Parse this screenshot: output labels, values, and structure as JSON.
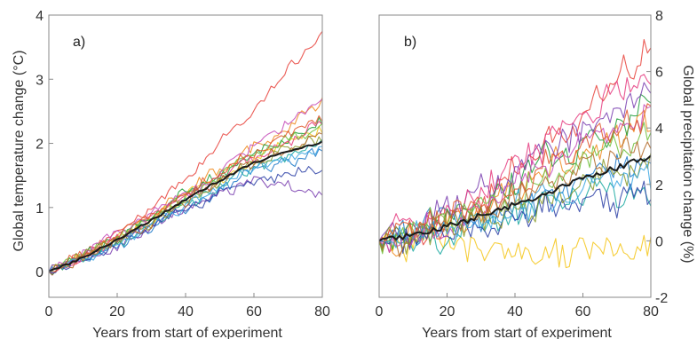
{
  "chart_data": [
    {
      "type": "line",
      "panel_label": "a)",
      "xlabel": "Years from start of experiment",
      "ylabel": "Global temperature change (°C)",
      "xlim": [
        0,
        80
      ],
      "ylim": [
        -0.4,
        4
      ],
      "xticks": [
        "0",
        "20",
        "40",
        "60",
        "80"
      ],
      "yticks": [
        "0",
        "1",
        "2",
        "3",
        "4"
      ],
      "y_axis_side": "left",
      "grid": false,
      "legend": "none",
      "colors": [
        "#e8413a",
        "#f08a1c",
        "#f5c518",
        "#1f9e3a",
        "#1b78c8",
        "#7a3fb0",
        "#e5397f",
        "#17a8a0",
        "#6fbf3b",
        "#2c3fa6",
        "#c44ab8",
        "#8a9a2a",
        "#e0562a",
        "#3aa6e0",
        "#b26a28"
      ],
      "mean_color": "#1a1a1a",
      "models": [
        {
          "x": [
            0,
            10,
            20,
            30,
            40,
            50,
            60,
            70,
            80
          ],
          "y": [
            0,
            0.3,
            0.62,
            0.95,
            1.45,
            2.02,
            2.55,
            3.12,
            3.72
          ]
        },
        {
          "x": [
            0,
            10,
            20,
            30,
            40,
            50,
            60,
            70,
            80
          ],
          "y": [
            0,
            0.25,
            0.55,
            0.85,
            1.25,
            1.6,
            1.95,
            2.25,
            2.6
          ]
        },
        {
          "x": [
            0,
            10,
            20,
            30,
            40,
            50,
            60,
            70,
            80
          ],
          "y": [
            0,
            0.22,
            0.5,
            0.8,
            1.15,
            1.45,
            1.75,
            2.0,
            2.2
          ]
        },
        {
          "x": [
            0,
            10,
            20,
            30,
            40,
            50,
            60,
            70,
            80
          ],
          "y": [
            0,
            0.24,
            0.52,
            0.82,
            1.2,
            1.52,
            1.85,
            2.1,
            2.35
          ]
        },
        {
          "x": [
            0,
            10,
            20,
            30,
            40,
            50,
            60,
            70,
            80
          ],
          "y": [
            0,
            0.2,
            0.45,
            0.72,
            1.02,
            1.3,
            1.55,
            1.72,
            1.85
          ]
        },
        {
          "x": [
            0,
            10,
            20,
            30,
            40,
            50,
            60,
            70,
            80
          ],
          "y": [
            0,
            0.18,
            0.42,
            0.7,
            0.98,
            1.22,
            1.42,
            1.38,
            1.2
          ]
        },
        {
          "x": [
            0,
            10,
            20,
            30,
            40,
            50,
            60,
            70,
            80
          ],
          "y": [
            0,
            0.23,
            0.5,
            0.8,
            1.12,
            1.45,
            1.78,
            2.02,
            2.28
          ]
        },
        {
          "x": [
            0,
            10,
            20,
            30,
            40,
            50,
            60,
            70,
            80
          ],
          "y": [
            0,
            0.2,
            0.46,
            0.75,
            1.05,
            1.35,
            1.62,
            1.8,
            1.98
          ]
        },
        {
          "x": [
            0,
            10,
            20,
            30,
            40,
            50,
            60,
            70,
            80
          ],
          "y": [
            0,
            0.24,
            0.52,
            0.82,
            1.15,
            1.5,
            1.82,
            2.05,
            2.25
          ]
        },
        {
          "x": [
            0,
            10,
            20,
            30,
            40,
            50,
            60,
            70,
            80
          ],
          "y": [
            0,
            0.18,
            0.42,
            0.68,
            0.95,
            1.2,
            1.38,
            1.5,
            1.55
          ]
        },
        {
          "x": [
            0,
            10,
            20,
            30,
            40,
            50,
            60,
            70,
            80
          ],
          "y": [
            0,
            0.26,
            0.56,
            0.88,
            1.22,
            1.58,
            1.95,
            2.3,
            2.7
          ]
        },
        {
          "x": [
            0,
            10,
            20,
            30,
            40,
            50,
            60,
            70,
            80
          ],
          "y": [
            0,
            0.22,
            0.48,
            0.76,
            1.08,
            1.38,
            1.65,
            1.88,
            2.05
          ]
        },
        {
          "x": [
            0,
            10,
            20,
            30,
            40,
            50,
            60,
            70,
            80
          ],
          "y": [
            0,
            0.25,
            0.54,
            0.86,
            1.18,
            1.52,
            1.86,
            2.12,
            2.4
          ]
        },
        {
          "x": [
            0,
            10,
            20,
            30,
            40,
            50,
            60,
            70,
            80
          ],
          "y": [
            0,
            0.2,
            0.46,
            0.74,
            1.05,
            1.32,
            1.58,
            1.8,
            1.95
          ]
        },
        {
          "x": [
            0,
            10,
            20,
            30,
            40,
            50,
            60,
            70,
            80
          ],
          "y": [
            0,
            0.22,
            0.5,
            0.78,
            1.1,
            1.42,
            1.7,
            1.92,
            2.12
          ]
        }
      ],
      "mean": {
        "x": [
          0,
          10,
          20,
          30,
          40,
          50,
          60,
          70,
          80
        ],
        "y": [
          0,
          0.22,
          0.5,
          0.8,
          1.12,
          1.42,
          1.7,
          1.88,
          2.02
        ]
      },
      "noise": 0.1
    },
    {
      "type": "line",
      "panel_label": "b)",
      "xlabel": "Years from start of experiment",
      "ylabel": "Global precipitation change (%)",
      "xlim": [
        0,
        80
      ],
      "ylim": [
        -2,
        8
      ],
      "xticks": [
        "0",
        "20",
        "40",
        "60",
        "80"
      ],
      "yticks": [
        "-2",
        "0",
        "2",
        "4",
        "6",
        "8"
      ],
      "y_axis_side": "right",
      "grid": false,
      "legend": "none",
      "colors": [
        "#e8413a",
        "#f08a1c",
        "#f5c518",
        "#1f9e3a",
        "#1b78c8",
        "#7a3fb0",
        "#e5397f",
        "#17a8a0",
        "#6fbf3b",
        "#2c3fa6",
        "#c44ab8",
        "#8a9a2a",
        "#e0562a",
        "#3aa6e0",
        "#b26a28"
      ],
      "mean_color": "#1a1a1a",
      "models": [
        {
          "x": [
            0,
            10,
            20,
            30,
            40,
            50,
            60,
            70,
            80
          ],
          "y": [
            0,
            0.3,
            0.8,
            1.5,
            2.4,
            3.4,
            4.6,
            5.8,
            7.0
          ]
        },
        {
          "x": [
            0,
            10,
            20,
            30,
            40,
            50,
            60,
            70,
            80
          ],
          "y": [
            0,
            0.3,
            0.7,
            1.2,
            1.8,
            2.5,
            3.2,
            3.7,
            4.1
          ]
        },
        {
          "x": [
            0,
            10,
            20,
            30,
            40,
            50,
            60,
            70,
            80
          ],
          "y": [
            0,
            0.1,
            0.1,
            -0.2,
            -0.6,
            -0.7,
            -0.4,
            -0.2,
            0.0
          ]
        },
        {
          "x": [
            0,
            10,
            20,
            30,
            40,
            50,
            60,
            70,
            80
          ],
          "y": [
            0,
            0.4,
            0.9,
            1.5,
            2.2,
            2.9,
            3.6,
            4.2,
            4.8
          ]
        },
        {
          "x": [
            0,
            10,
            20,
            30,
            40,
            50,
            60,
            70,
            80
          ],
          "y": [
            0,
            0.2,
            0.5,
            0.9,
            1.4,
            1.8,
            2.2,
            2.5,
            2.9
          ]
        },
        {
          "x": [
            0,
            10,
            20,
            30,
            40,
            50,
            60,
            70,
            80
          ],
          "y": [
            0,
            0.5,
            1.0,
            1.6,
            2.4,
            3.2,
            4.0,
            4.8,
            5.6
          ]
        },
        {
          "x": [
            0,
            10,
            20,
            30,
            40,
            50,
            60,
            70,
            80
          ],
          "y": [
            0,
            0.6,
            1.1,
            1.8,
            2.6,
            3.5,
            4.4,
            5.2,
            6.1
          ]
        },
        {
          "x": [
            0,
            10,
            20,
            30,
            40,
            50,
            60,
            70,
            80
          ],
          "y": [
            0,
            0.2,
            0.4,
            0.7,
            1.0,
            1.3,
            1.5,
            1.7,
            1.9
          ]
        },
        {
          "x": [
            0,
            10,
            20,
            30,
            40,
            50,
            60,
            70,
            80
          ],
          "y": [
            0,
            0.3,
            0.6,
            1.1,
            1.7,
            2.3,
            2.9,
            3.4,
            3.9
          ]
        },
        {
          "x": [
            0,
            10,
            20,
            30,
            40,
            50,
            60,
            70,
            80
          ],
          "y": [
            0,
            0.1,
            0.3,
            0.5,
            0.8,
            1.1,
            1.3,
            1.5,
            1.6
          ]
        },
        {
          "x": [
            0,
            10,
            20,
            30,
            40,
            50,
            60,
            70,
            80
          ],
          "y": [
            0,
            0.3,
            0.7,
            1.2,
            1.9,
            2.6,
            3.4,
            4.1,
            4.8
          ]
        },
        {
          "x": [
            0,
            10,
            20,
            30,
            40,
            50,
            60,
            70,
            80
          ],
          "y": [
            0,
            0.2,
            0.5,
            0.8,
            1.2,
            1.6,
            2.0,
            2.3,
            2.6
          ]
        },
        {
          "x": [
            0,
            10,
            20,
            30,
            40,
            50,
            60,
            70,
            80
          ],
          "y": [
            0,
            0.4,
            0.8,
            1.3,
            1.9,
            2.6,
            3.3,
            3.9,
            4.5
          ]
        },
        {
          "x": [
            0,
            10,
            20,
            30,
            40,
            50,
            60,
            70,
            80
          ],
          "y": [
            0,
            0.2,
            0.4,
            0.8,
            1.2,
            1.5,
            1.8,
            2.1,
            2.3
          ]
        },
        {
          "x": [
            0,
            10,
            20,
            30,
            40,
            50,
            60,
            70,
            80
          ],
          "y": [
            0,
            0.3,
            0.6,
            1.0,
            1.5,
            2.0,
            2.5,
            3.0,
            3.4
          ]
        }
      ],
      "mean": {
        "x": [
          0,
          10,
          20,
          30,
          40,
          50,
          60,
          70,
          80
        ],
        "y": [
          0,
          0.2,
          0.5,
          0.9,
          1.3,
          1.7,
          2.2,
          2.6,
          3.0
        ]
      },
      "noise": 0.6
    }
  ]
}
